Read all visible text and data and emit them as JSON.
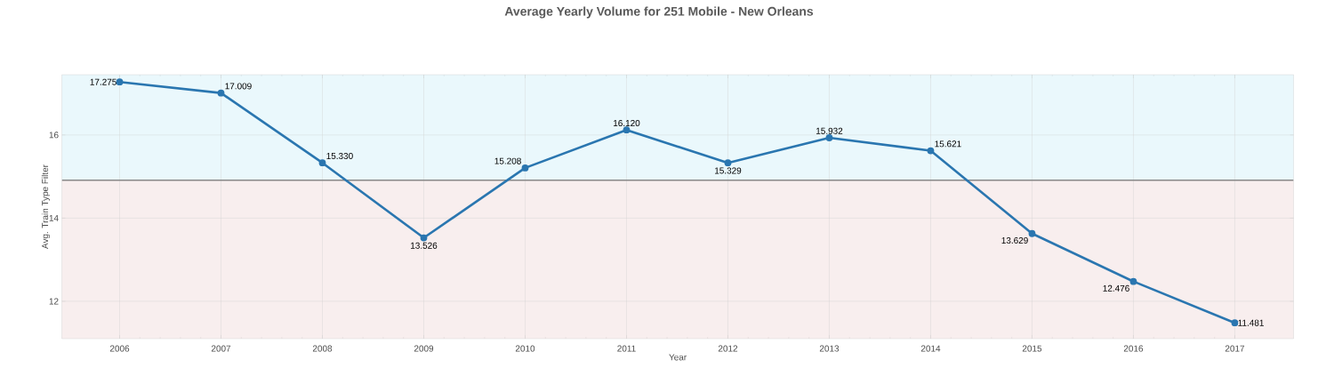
{
  "chart_data": {
    "type": "line",
    "title": "Average Yearly Volume for 251 Mobile - New Orleans",
    "xlabel": "Year",
    "ylabel": "Avg. Train Type Filter",
    "categories": [
      "2006",
      "2007",
      "2008",
      "2009",
      "2010",
      "2011",
      "2012",
      "2013",
      "2014",
      "2015",
      "2016",
      "2017"
    ],
    "series": [
      {
        "color": "#2a76b0",
        "values": [
          17.275,
          17.009,
          15.33,
          13.526,
          15.208,
          16.12,
          15.329,
          15.932,
          15.621,
          13.629,
          12.476,
          11.481
        ],
        "value_labels": [
          "17.275",
          "17.009",
          "15.330",
          "13.526",
          "15.208",
          "16.120",
          "15.329",
          "15.932",
          "15.621",
          "13.629",
          "12.476",
          "11.481"
        ]
      }
    ],
    "ylim": [
      11.1,
      17.45
    ],
    "yticks": [
      12,
      14,
      16
    ],
    "grid": true,
    "marker": "circle",
    "line_style": "solid",
    "ref_lines": [
      {
        "axis": "y",
        "value": 14.91,
        "color": "#888888"
      }
    ],
    "bands": [
      {
        "axis": "y",
        "from": 14.91,
        "to": 17.45,
        "color": "#eaf8fc"
      },
      {
        "axis": "y",
        "from": 11.1,
        "to": 14.91,
        "color": "#f8eeee"
      }
    ]
  }
}
